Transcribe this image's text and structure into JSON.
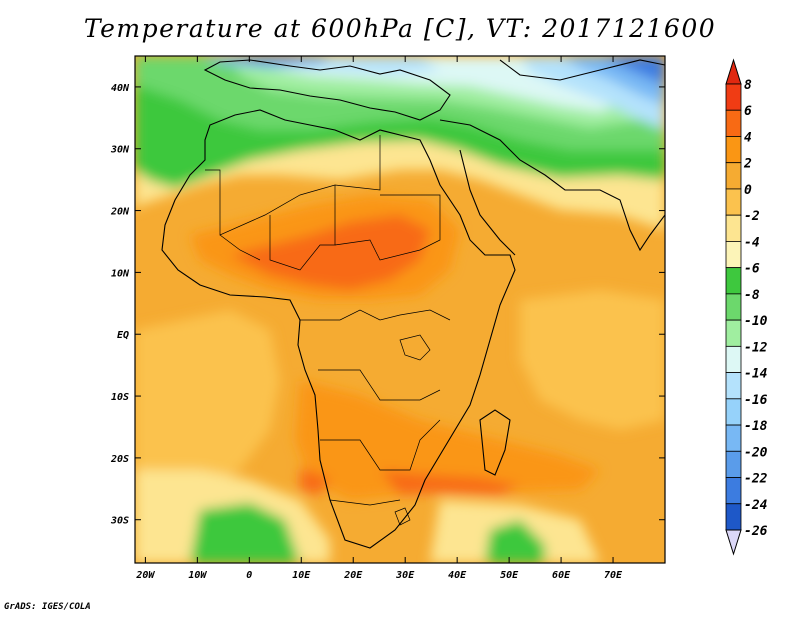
{
  "title": "Temperature at 600hPa [C], VT: 2017121600",
  "credit": "GrADS: IGES/COLA",
  "map": {
    "projection": "lat-lon",
    "lon_range": [
      -22,
      80
    ],
    "lat_range": [
      -37,
      45
    ],
    "lat_ticks": [
      {
        "value": 40,
        "label": "40N"
      },
      {
        "value": 30,
        "label": "30N"
      },
      {
        "value": 20,
        "label": "20N"
      },
      {
        "value": 10,
        "label": "10N"
      },
      {
        "value": 0,
        "label": "EQ"
      },
      {
        "value": -10,
        "label": "10S"
      },
      {
        "value": -20,
        "label": "20S"
      },
      {
        "value": -30,
        "label": "30S"
      }
    ],
    "lon_ticks": [
      {
        "value": -20,
        "label": "20W"
      },
      {
        "value": -10,
        "label": "10W"
      },
      {
        "value": 0,
        "label": "0"
      },
      {
        "value": 10,
        "label": "10E"
      },
      {
        "value": 20,
        "label": "20E"
      },
      {
        "value": 30,
        "label": "30E"
      },
      {
        "value": 40,
        "label": "40E"
      },
      {
        "value": 50,
        "label": "50E"
      },
      {
        "value": 60,
        "label": "60E"
      },
      {
        "value": 70,
        "label": "70E"
      }
    ]
  },
  "colorbar": {
    "levels": [
      8,
      6,
      4,
      2,
      0,
      -2,
      -4,
      -6,
      -8,
      -10,
      -12,
      -14,
      -16,
      -18,
      -20,
      -22,
      -24,
      -26
    ],
    "labels": [
      "8",
      "6",
      "4",
      "2",
      "0",
      "-2",
      "-4",
      "-6",
      "-8",
      "-10",
      "-12",
      "-14",
      "-16",
      "-18",
      "-20",
      "-22",
      "-24",
      "-26"
    ],
    "colors": [
      "#f03c14",
      "#f86a14",
      "#fa9614",
      "#f5ab32",
      "#fbc24e",
      "#fde591",
      "#fcf4b8",
      "#3ec83e",
      "#6cd86c",
      "#a0eea0",
      "#ddf8f5",
      "#b4e2fc",
      "#96d2fa",
      "#78b8f4",
      "#5a9cea",
      "#3c7ce0",
      "#1e58c8",
      "#0a28a0",
      "#0c0c70",
      "#dcd8f8"
    ],
    "top_arrow_color": "#e02810",
    "bottom_arrow_color": "#dcd8f8"
  }
}
